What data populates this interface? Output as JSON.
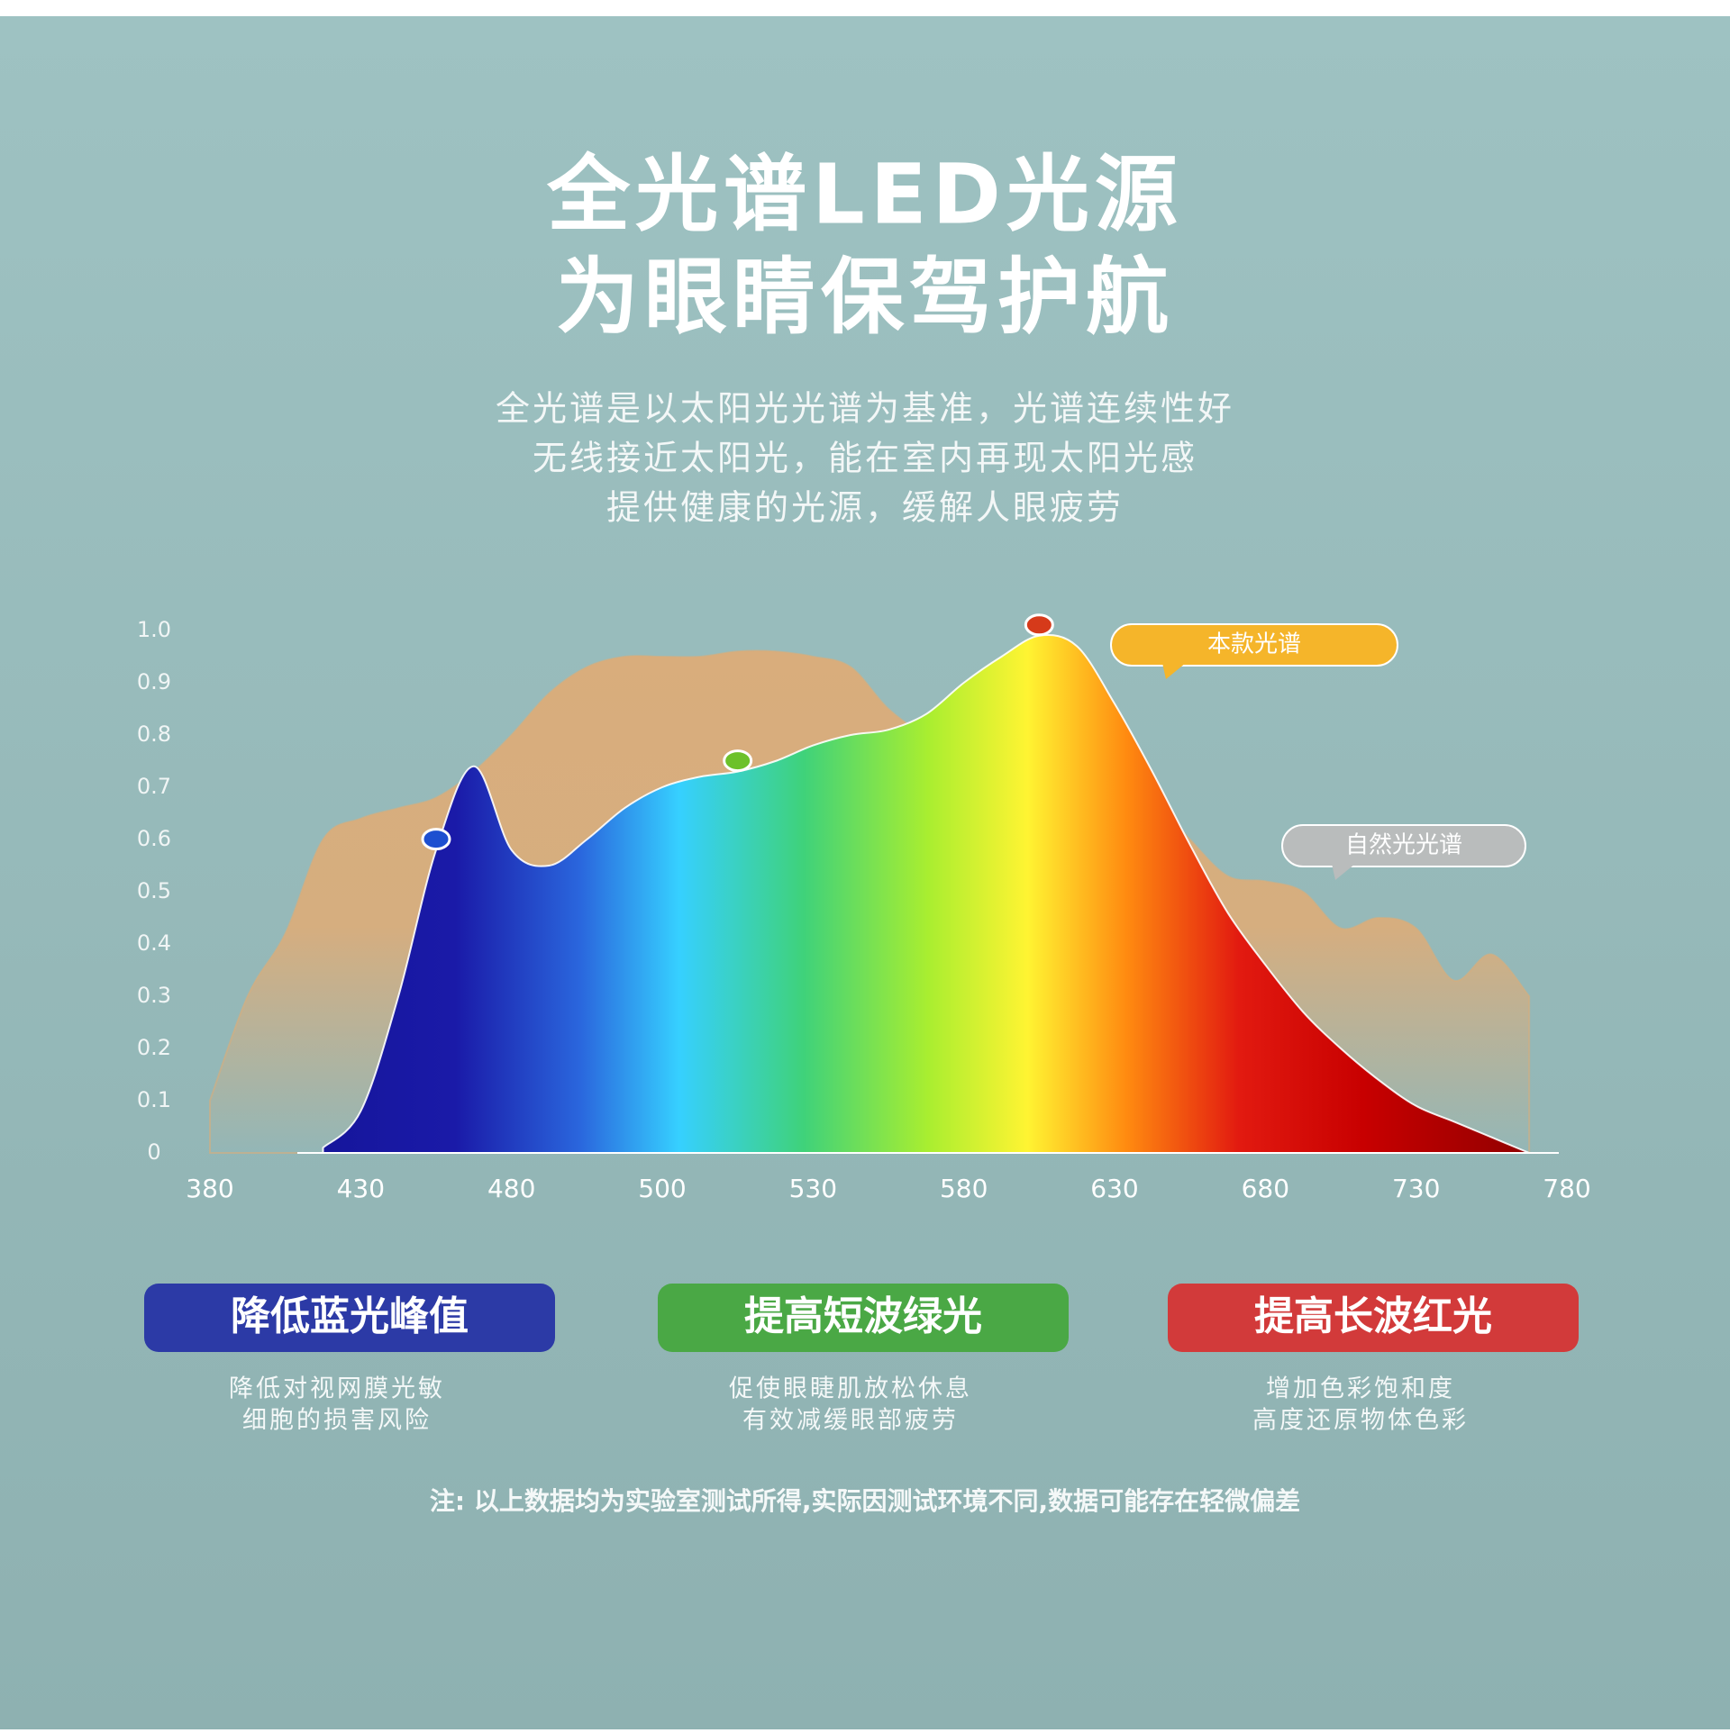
{
  "header": {
    "title_lines": [
      "全光谱LED光源",
      "为眼睛保驾护航"
    ],
    "subtitle_lines": [
      "全光谱是以太阳光光谱为基准，光谱连续性好",
      "无线接近太阳光，能在室内再现太阳光感",
      "提供健康的光源，缓解人眼疲劳"
    ]
  },
  "chart_data": {
    "type": "area",
    "categories": [
      "380",
      null,
      null,
      null,
      "430",
      null,
      null,
      null,
      "480",
      null,
      null,
      null,
      "500",
      null,
      null,
      null,
      "530",
      null,
      null,
      null,
      "580",
      null,
      null,
      null,
      "630",
      null,
      null,
      null,
      "680",
      null,
      null,
      null,
      "730",
      null,
      null,
      null,
      "780"
    ],
    "series": [
      {
        "name": "自然光光谱",
        "color": "#d9ad7c",
        "values": [
          0.1,
          0.3,
          0.42,
          0.6,
          0.64,
          0.66,
          0.68,
          0.73,
          0.8,
          0.88,
          0.93,
          0.95,
          0.95,
          0.95,
          0.96,
          0.96,
          0.95,
          0.93,
          0.85,
          0.8,
          0.78,
          0.77,
          0.76,
          0.74,
          0.72,
          0.68,
          0.6,
          0.53,
          0.52,
          0.5,
          0.43,
          0.45,
          0.43,
          0.33,
          0.38,
          0.3,
          null
        ]
      },
      {
        "name": "本款光谱",
        "values": [
          null,
          null,
          null,
          0.01,
          0.08,
          0.3,
          0.58,
          0.74,
          0.58,
          0.55,
          0.6,
          0.66,
          0.7,
          0.72,
          0.73,
          0.75,
          0.78,
          0.8,
          0.81,
          0.84,
          0.9,
          0.95,
          0.99,
          0.97,
          0.86,
          0.73,
          0.59,
          0.46,
          0.36,
          0.27,
          0.2,
          0.14,
          0.09,
          0.06,
          0.03,
          0.0,
          null
        ]
      }
    ],
    "ylim": [
      0,
      1
    ],
    "yticks": [
      0,
      0.1,
      0.2,
      0.3,
      0.4,
      0.5,
      0.6,
      0.7,
      0.8,
      0.9,
      {
        "value": 1,
        "label": "1.0"
      }
    ]
  },
  "features": [
    {
      "title": "降低蓝光峰值",
      "lines": [
        "降低对视网膜光敏",
        "细胞的损害风险"
      ]
    },
    {
      "title": "提高短波绿光",
      "lines": [
        "促使眼睫肌放松休息",
        "有效减缓眼部疲劳"
      ]
    },
    {
      "title": "提高长波红光",
      "lines": [
        "增加色彩饱和度",
        "高度还原物体色彩"
      ]
    }
  ],
  "note": "注: 以上数据均为实验室测试所得,实际因测试环境不同,数据可能存在轻微偏差"
}
